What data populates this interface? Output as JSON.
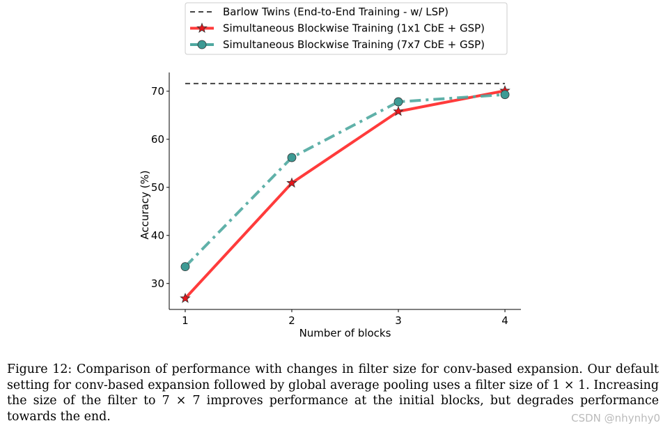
{
  "chart_data": {
    "type": "line",
    "xlabel": "Number of blocks",
    "ylabel": "Accuracy (%)",
    "x": [
      1,
      2,
      3,
      4
    ],
    "xticks": [
      "1",
      "2",
      "3",
      "4"
    ],
    "yticks": [
      "30",
      "40",
      "50",
      "60",
      "70"
    ],
    "xlim": [
      0.85,
      4.15
    ],
    "ylim": [
      24.6,
      73.9
    ],
    "grid": false,
    "legend_placement": "top-center (outside)",
    "series": [
      {
        "name": "Barlow Twins (End-to-End Training - w/ LSP)",
        "values": [
          71.6,
          71.6,
          71.6,
          71.6
        ],
        "color": "#444444",
        "style": "dashed",
        "marker": "none"
      },
      {
        "name": "Simultaneous Blockwise Training (1x1 CbE + GSP)",
        "values": [
          26.9,
          50.9,
          65.8,
          70.1
        ],
        "color": "#ff3b3b",
        "style": "solid",
        "marker": "star"
      },
      {
        "name": "Simultaneous Blockwise Training (7x7 CbE + GSP)",
        "values": [
          33.5,
          56.2,
          67.8,
          69.3
        ],
        "color": "#4fa8a0",
        "style": "dashdot",
        "marker": "circle"
      }
    ]
  },
  "caption": "Figure 12: Comparison of performance with changes in filter size for conv-based expansion. Our default setting for conv-based expansion followed by global average pooling uses a filter size of 1 × 1. Increasing the size of the filter to 7 × 7 improves performance at the initial blocks, but degrades performance towards the end.",
  "watermark": "CSDN @nhynhy0"
}
